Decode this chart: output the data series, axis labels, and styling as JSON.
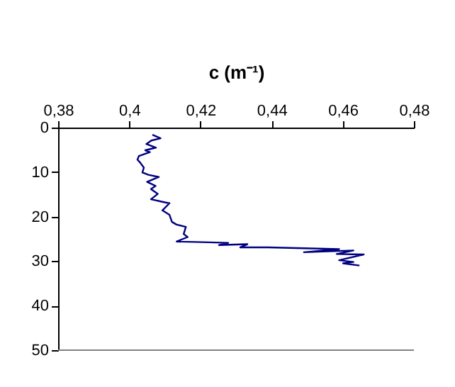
{
  "chart_data": {
    "type": "line",
    "xlabel": "c (m⁻¹)",
    "grid": false,
    "x": [
      0.4065,
      0.4088,
      0.4062,
      0.4048,
      0.4075,
      0.4045,
      0.4058,
      0.4027,
      0.4023,
      0.4031,
      0.4041,
      0.4037,
      0.4054,
      0.4083,
      0.405,
      0.4074,
      0.4061,
      0.408,
      0.4061,
      0.41,
      0.4113,
      0.4093,
      0.4113,
      0.412,
      0.4133,
      0.4159,
      0.4153,
      0.4164,
      0.4133,
      0.4186,
      0.4278,
      0.4252,
      0.4332,
      0.4312,
      0.4391,
      0.459,
      0.4491,
      0.463,
      0.4583,
      0.4659,
      0.459,
      0.463,
      0.4601,
      0.4647
    ],
    "series": [
      {
        "color": "#000080",
        "values": [
          1.6,
          2.4,
          2.9,
          3.7,
          4.5,
          5.1,
          5.5,
          6.4,
          7.2,
          7.9,
          9.0,
          10.1,
          10.6,
          11.1,
          12.2,
          13.1,
          13.8,
          14.9,
          16.1,
          16.8,
          17.0,
          18.6,
          19.6,
          21.2,
          21.8,
          22.3,
          23.9,
          24.6,
          25.6,
          25.7,
          25.9,
          26.4,
          26.2,
          26.9,
          26.9,
          27.3,
          28.0,
          27.6,
          28.4,
          28.5,
          29.8,
          30.2,
          30.5,
          31.0
        ]
      }
    ],
    "xlim": [
      0.38,
      0.48
    ],
    "xticks": [
      {
        "value": 0.38,
        "label": "0,38"
      },
      {
        "value": 0.4,
        "label": "0,4"
      },
      {
        "value": 0.42,
        "label": "0,42"
      },
      {
        "value": 0.44,
        "label": "0,44"
      },
      {
        "value": 0.46,
        "label": "0,46"
      },
      {
        "value": 0.48,
        "label": "0,48"
      }
    ],
    "ylim": [
      50,
      0
    ],
    "yticks": [
      0,
      10,
      20,
      30,
      40,
      50
    ]
  }
}
